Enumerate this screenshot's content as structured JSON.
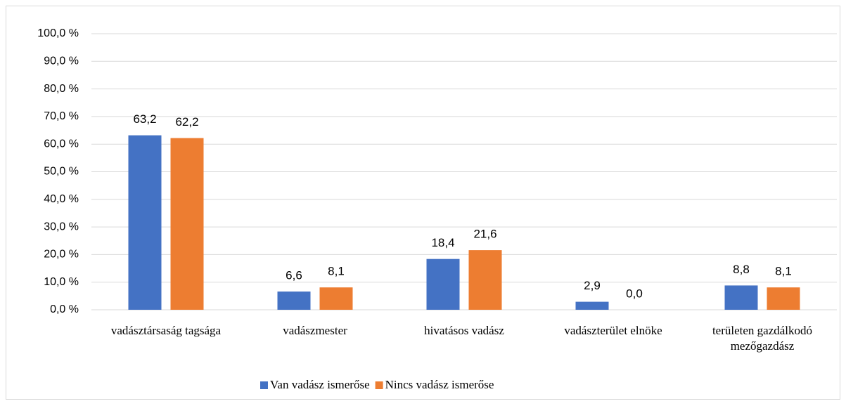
{
  "chart_data": {
    "type": "bar",
    "categories": [
      "vadásztársaság tagsága",
      "vadászmester",
      "hivatásos vadász",
      "vadászterület elnöke",
      "területen gazdálkodó mezőgazdász"
    ],
    "series": [
      {
        "name": "Van vadász ismerőse",
        "color": "#4472c4",
        "values": [
          63.2,
          6.6,
          18.4,
          2.9,
          8.8
        ],
        "value_labels": [
          "63,2",
          "6,6",
          "18,4",
          "2,9",
          "8,8"
        ]
      },
      {
        "name": "Nincs vadász ismerőse",
        "color": "#ed7d31",
        "values": [
          62.2,
          8.1,
          21.6,
          0.0,
          8.1
        ],
        "value_labels": [
          "62,2",
          "8,1",
          "21,6",
          "0,0",
          "8,1"
        ]
      }
    ],
    "ylim": [
      0,
      100
    ],
    "yticks": [
      {
        "value": 0,
        "label": "0,0 %"
      },
      {
        "value": 10,
        "label": "10,0 %"
      },
      {
        "value": 20,
        "label": "20,0 %"
      },
      {
        "value": 30,
        "label": "30,0 %"
      },
      {
        "value": 40,
        "label": "40,0 %"
      },
      {
        "value": 50,
        "label": "50,0 %"
      },
      {
        "value": 60,
        "label": "60,0 %"
      },
      {
        "value": 70,
        "label": "70,0 %"
      },
      {
        "value": 80,
        "label": "80,0 %"
      },
      {
        "value": 90,
        "label": "90,0 %"
      },
      {
        "value": 100,
        "label": "100,0 %"
      }
    ],
    "grid": true,
    "legend": "bottom"
  }
}
